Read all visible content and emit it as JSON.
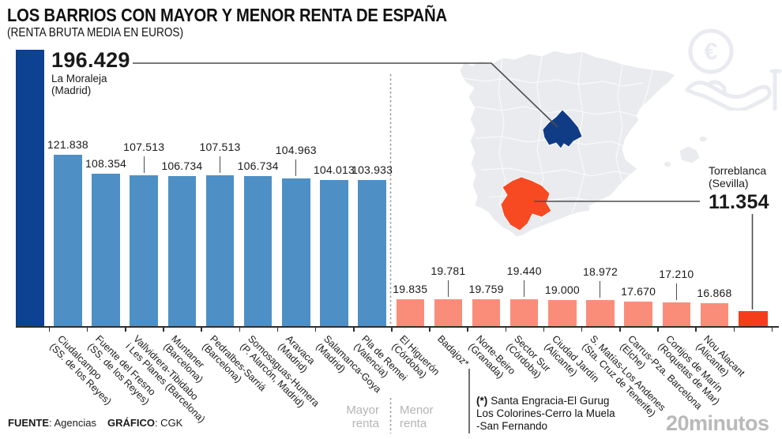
{
  "title": "LOS BARRIOS CON MAYOR Y MENOR RENTA DE ESPAÑA",
  "subtitle": "(RENTA BRUTA MEDIA EN EUROS)",
  "chart_data": {
    "type": "bar",
    "unit": "euros (renta bruta media)",
    "ylim": [
      0,
      196429
    ],
    "grid": false,
    "sections": [
      "Mayor renta",
      "Menor renta"
    ],
    "bars": [
      {
        "key": "la-moraleja",
        "name": "La Moraleja",
        "place": "(Madrid)",
        "value": 196429,
        "display": "196.429",
        "color": "dark_blue",
        "lines": [],
        "annotation": "top-left"
      },
      {
        "key": "ciudalcampo",
        "value": 121838,
        "display": "121.838",
        "raised": false,
        "color": "blue",
        "lines": [
          "Ciudalcampo",
          "(SS. de los Reyes)"
        ]
      },
      {
        "key": "fuente-del-fresno",
        "value": 108354,
        "display": "108.354",
        "raised": false,
        "color": "blue",
        "lines": [
          "Fuente del Fresno",
          "(SS. de los Reyes)"
        ]
      },
      {
        "key": "vallvidrera",
        "value": 107513,
        "display": "107.513",
        "raised": true,
        "color": "blue",
        "lines": [
          "Vallvidrera-Tibidabo",
          "i Les Planes (Barcelona)"
        ]
      },
      {
        "key": "muntaner",
        "value": 106734,
        "display": "106.734",
        "raised": false,
        "color": "blue",
        "lines": [
          "Muntaner",
          "(Barcelona)"
        ]
      },
      {
        "key": "pedralbes-sarria",
        "value": 107513,
        "display": "107.513",
        "raised": true,
        "color": "blue",
        "lines": [
          "Pedralbes-Sarriá",
          "(Barcelona)"
        ]
      },
      {
        "key": "somosaguas-humera",
        "value": 106734,
        "display": "106.734",
        "raised": false,
        "color": "blue",
        "lines": [
          "Somosaguas-Humera",
          "(P. Alarcón, Madrid)"
        ]
      },
      {
        "key": "aravaca",
        "value": 104963,
        "display": "104.963",
        "raised": true,
        "color": "blue",
        "lines": [
          "Aravaca",
          "(Madrid)"
        ]
      },
      {
        "key": "salamanca-goya",
        "value": 104013,
        "display": "104.013",
        "raised": false,
        "color": "blue",
        "lines": [
          "Salamanca-Goya",
          "(Madrid)"
        ]
      },
      {
        "key": "pla-de-remei",
        "value": 103933,
        "display": "103.933",
        "raised": false,
        "color": "blue",
        "lines": [
          "Pla de Remei",
          "(Valencia)"
        ]
      },
      {
        "key": "el-higueron",
        "value": 19835,
        "display": "19.835",
        "raised": false,
        "color": "salmon",
        "lines": [
          "El Higuerón",
          "(Córdoba)"
        ]
      },
      {
        "key": "badajoz",
        "value": 19781,
        "display": "19.781",
        "raised": true,
        "color": "salmon",
        "lines": [
          "Badajoz*"
        ]
      },
      {
        "key": "norte-beiro",
        "value": 19759,
        "display": "19.759",
        "raised": false,
        "color": "salmon",
        "lines": [
          "Norte-Beiro",
          "(Granada)"
        ]
      },
      {
        "key": "sector-sur",
        "value": 19440,
        "display": "19.440",
        "raised": true,
        "color": "salmon",
        "lines": [
          "Sector Sur",
          "(Córdoba)"
        ]
      },
      {
        "key": "ciudad-jardin",
        "value": 19000,
        "display": "19.000",
        "raised": false,
        "color": "salmon",
        "lines": [
          "Ciudad Jardín",
          "(Alicante)"
        ]
      },
      {
        "key": "s-matias-los-andenes",
        "value": 18972,
        "display": "18.972",
        "raised": true,
        "color": "salmon",
        "lines": [
          "S. Matías-Los Andenes",
          "(Sta. Cruz de Tenerife)"
        ]
      },
      {
        "key": "carrus-pza-barcelona",
        "value": 17670,
        "display": "17.670",
        "raised": false,
        "color": "salmon",
        "lines": [
          "Carrus-Pza. Barcelona",
          "(Elche)"
        ]
      },
      {
        "key": "cortijos-de-marin",
        "value": 17210,
        "display": "17.210",
        "raised": true,
        "color": "salmon",
        "lines": [
          "Cortijos de Marín",
          "(Roquetas de Mar)"
        ]
      },
      {
        "key": "nou-alacant",
        "value": 16868,
        "display": "16.868",
        "raised": false,
        "color": "salmon",
        "lines": [
          "Nou Alacant",
          "(Alicante)"
        ]
      },
      {
        "key": "torreblanca",
        "name": "Torreblanca",
        "place": "(Sevilla)",
        "value": 11354,
        "display": "11.354",
        "color": "red",
        "lines": [],
        "annotation": "right"
      }
    ]
  },
  "legend": {
    "mayor": "Mayor\nrenta",
    "menor": "Menor\nrenta"
  },
  "footnote": {
    "marker": "(*)",
    "line1": "Santa Engracia-El Gurug",
    "line2": "Los Colorines-Cerro la Muela",
    "line3": "-San Fernando"
  },
  "source": {
    "label1": "FUENTE",
    "value1": ": Agencias",
    "label2": "GRÁFICO",
    "value2": ": CGK"
  },
  "brand": "20minutos",
  "icons": {
    "euro_hand": "hand-receiving-euro-coin",
    "euro_symbol": "€"
  },
  "map": {
    "highlight_top": "Madrid",
    "highlight_bottom": "Sevilla"
  },
  "colors": {
    "dark_blue": "#0d4191",
    "blue": "#4e90c5",
    "salmon": "#fa8d7a",
    "red": "#f43e1b",
    "map_gray": "#e9ebee",
    "map_blue": "#103c85",
    "map_red": "#f74a22",
    "line": "#4d4d4d",
    "dotted": "#9b9b9b",
    "muted": "#b4b4b4",
    "watermark": "#e9ebf0"
  }
}
